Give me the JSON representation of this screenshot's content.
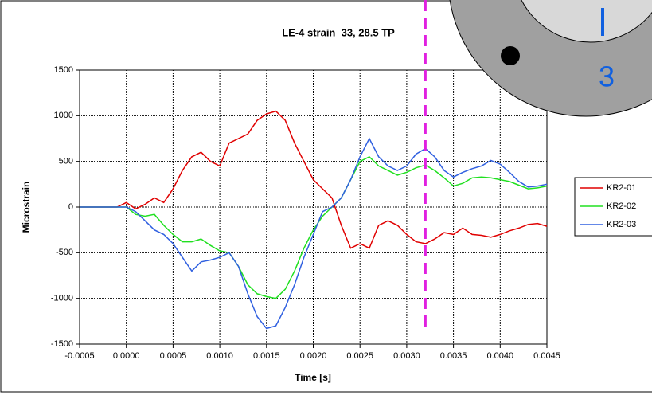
{
  "chart_data": {
    "type": "line",
    "title": "LE-4 strain_33, 28.5 TP",
    "x_label": "Time [s]",
    "y_label": "Microstrain",
    "xlim": [
      -0.0005,
      0.0045
    ],
    "ylim": [
      -1500,
      1500
    ],
    "xticks": [
      -0.0005,
      {
        "value": 0,
        "label": "0.0000"
      },
      0.0005,
      {
        "value": 0.001,
        "label": "0.0010"
      },
      0.0015,
      {
        "value": 0.002,
        "label": "0.0020"
      },
      0.0025,
      {
        "value": 0.003,
        "label": "0.0030"
      },
      0.0035,
      {
        "value": 0.004,
        "label": "0.0040"
      },
      0.0045
    ],
    "yticks": [
      -1500,
      -1000,
      -500,
      0,
      500,
      1000,
      1500
    ],
    "grid": true,
    "legend": "right",
    "cursor_x": 0.0032,
    "cursor_color": "#e020e0",
    "x": [
      -0.0005,
      -0.0004,
      -0.0003,
      -0.0002,
      -0.0001,
      0,
      0.0001,
      0.0002,
      0.0003,
      0.0004,
      0.0005,
      0.0006,
      0.0007,
      0.0008,
      0.0009,
      0.001,
      0.0011,
      0.0012,
      0.0013,
      0.0014,
      0.0015,
      0.0016,
      0.0017,
      0.0018,
      0.0019,
      0.002,
      0.0021,
      0.0022,
      0.0023,
      0.0024,
      0.0025,
      0.0026,
      0.0027,
      0.0028,
      0.0029,
      0.003,
      0.0031,
      0.0032,
      0.0033,
      0.0034,
      0.0035,
      0.0036,
      0.0037,
      0.0038,
      0.0039,
      0.004,
      0.0041,
      0.0042,
      0.0043,
      0.0044,
      0.0045
    ],
    "series": [
      {
        "name": "KR2-01",
        "color": "#e00000",
        "values": [
          0,
          0,
          0,
          0,
          0,
          50,
          -20,
          30,
          100,
          50,
          200,
          400,
          550,
          600,
          500,
          450,
          700,
          750,
          800,
          950,
          1020,
          1050,
          950,
          700,
          500,
          300,
          200,
          100,
          -200,
          -450,
          -400,
          -450,
          -200,
          -150,
          -200,
          -300,
          -380,
          -400,
          -350,
          -280,
          -300,
          -230,
          -300,
          -310,
          -330,
          -300,
          -260,
          -230,
          -190,
          -180,
          -210
        ]
      },
      {
        "name": "KR2-02",
        "color": "#20e020",
        "values": [
          0,
          0,
          0,
          0,
          0,
          0,
          -80,
          -100,
          -80,
          -200,
          -300,
          -380,
          -380,
          -350,
          -420,
          -480,
          -500,
          -650,
          -850,
          -950,
          -980,
          -1000,
          -900,
          -700,
          -450,
          -250,
          -100,
          0,
          100,
          300,
          500,
          550,
          450,
          400,
          350,
          380,
          430,
          460,
          400,
          320,
          230,
          260,
          320,
          330,
          320,
          300,
          280,
          240,
          200,
          210,
          230
        ]
      },
      {
        "name": "KR2-03",
        "color": "#3060e0",
        "values": [
          0,
          0,
          0,
          0,
          0,
          0,
          -50,
          -150,
          -250,
          -300,
          -400,
          -550,
          -700,
          -600,
          -580,
          -550,
          -500,
          -650,
          -950,
          -1200,
          -1330,
          -1300,
          -1100,
          -850,
          -550,
          -300,
          -50,
          0,
          100,
          300,
          550,
          750,
          550,
          450,
          400,
          450,
          580,
          640,
          550,
          400,
          330,
          380,
          420,
          450,
          510,
          470,
          380,
          280,
          220,
          230,
          250
        ]
      }
    ]
  },
  "overlay": {
    "label": "3"
  }
}
